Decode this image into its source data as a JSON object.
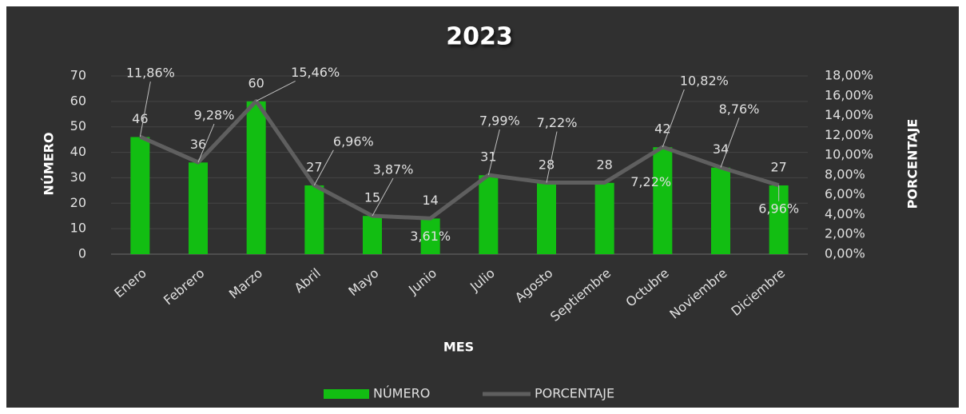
{
  "chart_data": {
    "type": "bar",
    "title": "2023",
    "x_label": "MES",
    "y_label": "NÚMERO",
    "y2_label": "PORCENTAJE",
    "categories": [
      "Enero",
      "Febrero",
      "Marzo",
      "Abril",
      "Mayo",
      "Junio",
      "Julio",
      "Agosto",
      "Septiembre",
      "Octubre",
      "Noviembre",
      "Diciembre"
    ],
    "series": [
      {
        "name": "NÚMERO",
        "type": "bar",
        "color": "#12be12",
        "values": [
          46,
          36,
          60,
          27,
          15,
          14,
          31,
          28,
          28,
          42,
          34,
          27
        ]
      },
      {
        "name": "PORCENTAJE",
        "type": "line",
        "axis": "y2",
        "color": "#5f5f5f",
        "values": [
          11.86,
          9.28,
          15.46,
          6.96,
          3.87,
          3.61,
          7.99,
          7.22,
          7.22,
          10.82,
          8.76,
          6.96
        ],
        "value_labels": [
          "11,86%",
          "9,28%",
          "15,46%",
          "6,96%",
          "3,87%",
          "3,61%",
          "7,99%",
          "7,22%",
          "7,22%",
          "10,82%",
          "8,76%",
          "6,96%"
        ]
      }
    ],
    "ylim": [
      0,
      70
    ],
    "yticks": [
      0,
      10,
      20,
      30,
      40,
      50,
      60,
      70
    ],
    "y2lim": [
      0,
      18
    ],
    "y2ticks": [
      {
        "value": 0,
        "label": "0,00%"
      },
      {
        "value": 2,
        "label": "2,00%"
      },
      {
        "value": 4,
        "label": "4,00%"
      },
      {
        "value": 6,
        "label": "6,00%"
      },
      {
        "value": 8,
        "label": "8,00%"
      },
      {
        "value": 10,
        "label": "10,00%"
      },
      {
        "value": 12,
        "label": "12,00%"
      },
      {
        "value": 14,
        "label": "14,00%"
      },
      {
        "value": 16,
        "label": "16,00%"
      },
      {
        "value": 18,
        "label": "18,00%"
      }
    ],
    "grid": true,
    "legend": "bottom"
  }
}
